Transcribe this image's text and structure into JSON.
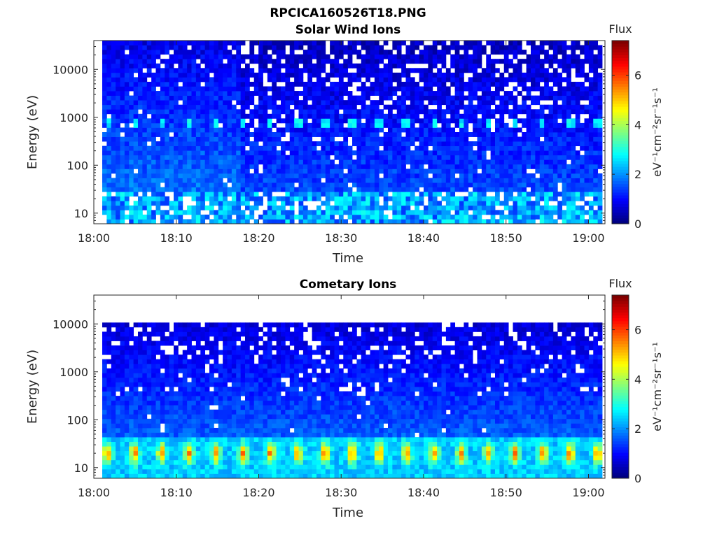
{
  "figure": {
    "title": "RPCICA160526T18.PNG"
  },
  "chart_data": [
    {
      "type": "heatmap",
      "title": "Solar Wind Ions",
      "xlabel": "Time",
      "ylabel": "Energy (eV)",
      "x_ticks": [
        "18:00",
        "18:10",
        "18:20",
        "18:30",
        "18:40",
        "18:50",
        "19:00"
      ],
      "xlim": [
        "18:00",
        "19:02"
      ],
      "y_scale": "log",
      "y_ticks": [
        10,
        100,
        1000,
        10000
      ],
      "y_tick_labels": [
        "10",
        "100",
        "1000",
        "10000"
      ],
      "ylim": [
        6,
        40000
      ],
      "colorbar": {
        "title": "Flux",
        "label": "eV⁻¹cm⁻²sr⁻¹s⁻¹",
        "range": [
          0,
          7.4
        ],
        "ticks": [
          "0",
          "2",
          "4",
          "6"
        ]
      },
      "features": [
        {
          "description": "periodic peaks near 800 eV",
          "energy": 800,
          "level": 2.6
        },
        {
          "description": "elevated low-energy band below 30 eV",
          "energy_range": [
            6,
            30
          ],
          "level": 2.0
        }
      ]
    },
    {
      "type": "heatmap",
      "title": "Cometary Ions",
      "xlabel": "Time",
      "ylabel": "Energy (eV)",
      "x_ticks": [
        "18:00",
        "18:10",
        "18:20",
        "18:30",
        "18:40",
        "18:50",
        "19:00"
      ],
      "xlim": [
        "18:00",
        "19:02"
      ],
      "y_scale": "log",
      "y_ticks": [
        10,
        100,
        1000,
        10000
      ],
      "y_tick_labels": [
        "10",
        "100",
        "1000",
        "10000"
      ],
      "ylim": [
        6,
        40000
      ],
      "colorbar": {
        "title": "Flux",
        "label": "eV⁻¹cm⁻²sr⁻¹s⁻¹",
        "range": [
          0,
          7.4
        ],
        "ticks": [
          "0",
          "2",
          "4",
          "6"
        ]
      },
      "features": [
        {
          "description": "periodic high flux band near 20 eV",
          "energy_range": [
            12,
            35
          ],
          "level": 5.0
        },
        {
          "description": "data ceiling near 11000 eV",
          "energy": 11000
        }
      ]
    }
  ]
}
